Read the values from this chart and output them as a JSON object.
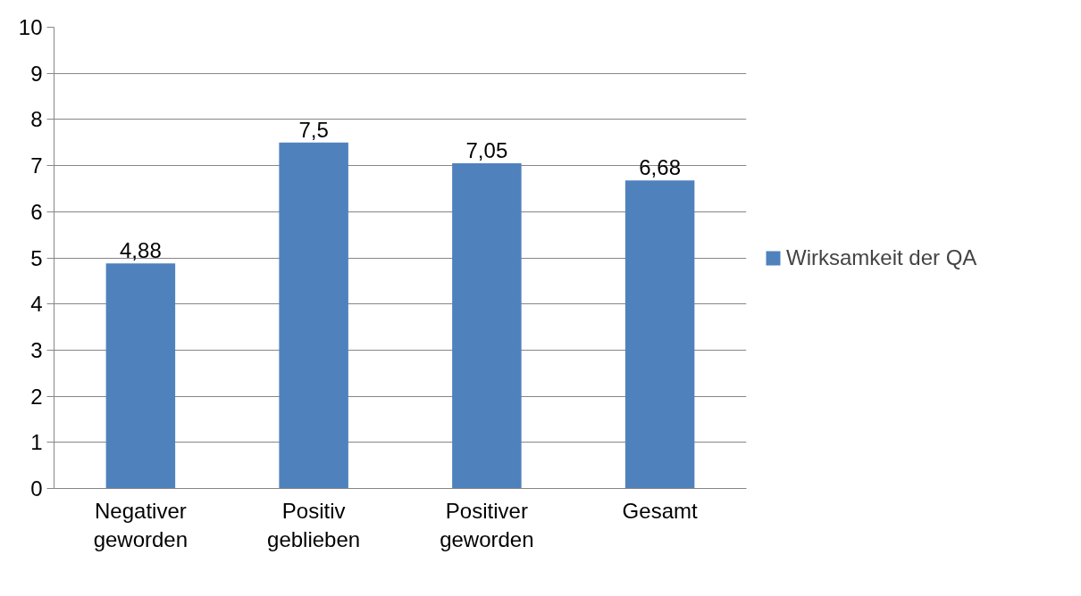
{
  "chart_data": {
    "type": "bar",
    "categories": [
      "Negativer geworden",
      "Positiv geblieben",
      "Positiver geworden",
      "Gesamt"
    ],
    "series": [
      {
        "name": "Wirksamkeit der QA",
        "color": "#4f81bd",
        "values": [
          4.88,
          7.5,
          7.05,
          6.68
        ],
        "value_labels": [
          "4,88",
          "7,5",
          "7,05",
          "6,68"
        ]
      }
    ],
    "ylim": [
      0,
      10
    ],
    "yticks": [
      0,
      1,
      2,
      3,
      4,
      5,
      6,
      7,
      8,
      9,
      10
    ],
    "grid": "y",
    "legend": "right"
  }
}
